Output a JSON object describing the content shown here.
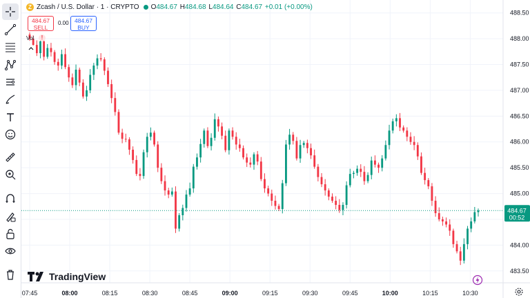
{
  "legend": {
    "symbol": "Zcash / U.S. Dollar · 1 · CRYPTO",
    "open_label": "O",
    "open": "484.67",
    "high_label": "H",
    "high": "484.68",
    "low_label": "L",
    "low": "484.64",
    "close_label": "C",
    "close": "484.67",
    "change": "+0.01 (+0.00%)"
  },
  "trade": {
    "sell_price": "484.67",
    "sell_label": "SELL",
    "spread": "0.00",
    "buy_price": "484.67",
    "buy_label": "BUY"
  },
  "volume_label": "Vol",
  "warning_icon": "!",
  "branding": "TradingView",
  "toolbar_icons": [
    "crosshair-icon",
    "trend-line-icon",
    "fib-retracement-icon",
    "pattern-icon",
    "measure-icon",
    "brush-icon",
    "text-icon",
    "emoji-icon",
    "ruler-icon",
    "zoom-in-icon",
    "magnet-icon",
    "lock-icon",
    "eye-icon",
    "trash-icon"
  ],
  "colors": {
    "up": "#089981",
    "down": "#f23645",
    "grid": "#f0f3fa",
    "axis_text": "#131722"
  },
  "chart_data": {
    "type": "candlestick",
    "symbol": "Zcash / U.S. Dollar",
    "interval": "1",
    "ylim": [
      483.4,
      488.6
    ],
    "y_ticks": [
      "488.50",
      "488.00",
      "487.50",
      "487.00",
      "486.50",
      "486.00",
      "485.50",
      "485.00",
      "484.50",
      "484.00",
      "483.50"
    ],
    "x_ticks": [
      "07:45",
      "08:00",
      "08:15",
      "08:30",
      "08:45",
      "09:00",
      "09:15",
      "09:30",
      "09:45",
      "10:00",
      "10:15",
      "10:30"
    ],
    "x_range": [
      "07:45",
      "10:33"
    ],
    "last_price": "484.67",
    "countdown": "00:52",
    "closes": [
      488.0,
      487.88,
      487.72,
      487.95,
      487.65,
      487.82,
      487.74,
      487.55,
      487.48,
      487.7,
      487.45,
      487.25,
      487.1,
      487.4,
      487.15,
      486.88,
      487.0,
      487.3,
      487.48,
      487.62,
      487.6,
      487.38,
      487.12,
      486.85,
      486.58,
      486.18,
      486.06,
      486.05,
      485.85,
      485.65,
      485.38,
      485.34,
      485.8,
      486.1,
      486.18,
      485.95,
      485.5,
      485.24,
      485.06,
      484.98,
      485.04,
      484.32,
      484.58,
      484.72,
      484.98,
      485.1,
      485.52,
      485.7,
      485.96,
      486.22,
      485.92,
      486.08,
      486.44,
      486.3,
      486.12,
      485.84,
      486.22,
      486.1,
      485.95,
      485.88,
      485.7,
      485.6,
      485.56,
      485.76,
      485.62,
      485.28,
      485.1,
      485.0,
      484.86,
      484.76,
      484.7,
      485.2,
      485.95,
      486.14,
      486.02,
      485.68,
      485.94,
      485.98,
      485.88,
      485.74,
      485.52,
      485.32,
      485.18,
      485.06,
      484.94,
      484.86,
      484.78,
      484.68,
      484.78,
      485.16,
      485.38,
      485.4,
      485.48,
      485.42,
      485.24,
      485.36,
      485.64,
      485.56,
      485.5,
      485.68,
      485.94,
      486.22,
      486.4,
      486.46,
      486.28,
      486.22,
      486.1,
      486.0,
      485.94,
      485.72,
      485.4,
      485.26,
      485.14,
      484.86,
      484.62,
      484.5,
      484.46,
      484.4,
      484.28,
      484.02,
      483.88,
      483.7,
      484.02,
      484.32,
      484.46,
      484.64,
      484.67
    ]
  }
}
